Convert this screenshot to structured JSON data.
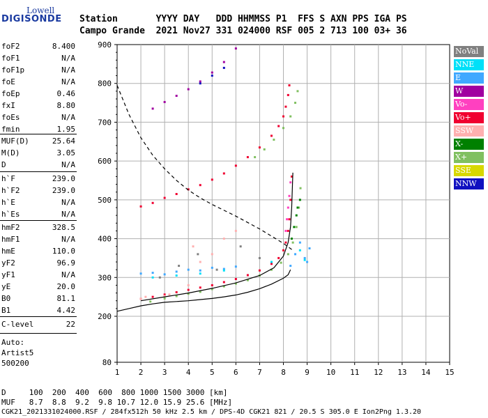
{
  "logo": {
    "line1": "Lowell",
    "line2": "DIGISONDE"
  },
  "header": {
    "line1": "Station       YYYY DAY   DDD HHMMSS P1  FFS S AXN PPS IGA PS",
    "line2": "Campo Grande  2021 Nov27 331 024000 RSF 005 2 713 100 03+ 36"
  },
  "params_group1": [
    {
      "label": "foF2",
      "value": "8.400"
    },
    {
      "label": "foF1",
      "value": "N/A"
    },
    {
      "label": "foF1p",
      "value": "N/A"
    },
    {
      "label": "foE",
      "value": "N/A"
    },
    {
      "label": "foEp",
      "value": "0.46"
    },
    {
      "label": "fxI",
      "value": "8.80"
    },
    {
      "label": "foEs",
      "value": "N/A"
    },
    {
      "label": "fmin",
      "value": "1.95"
    }
  ],
  "params_group2": [
    {
      "label": "MUF(D)",
      "value": "25.64"
    },
    {
      "label": "M(D)",
      "value": "3.05"
    },
    {
      "label": "D",
      "value": "N/A"
    }
  ],
  "params_group3": [
    {
      "label": "h`F",
      "value": "239.0"
    },
    {
      "label": "h`F2",
      "value": "239.0"
    },
    {
      "label": "h`E",
      "value": "N/A"
    },
    {
      "label": "h`Es",
      "value": "N/A"
    }
  ],
  "params_group4": [
    {
      "label": "hmF2",
      "value": "328.5"
    },
    {
      "label": "hmF1",
      "value": "N/A"
    },
    {
      "label": "hmE",
      "value": "110.0"
    },
    {
      "label": "yF2",
      "value": "96.9"
    },
    {
      "label": "yF1",
      "value": "N/A"
    },
    {
      "label": "yE",
      "value": "20.0"
    },
    {
      "label": "B0",
      "value": "81.1"
    },
    {
      "label": "B1",
      "value": "4.42"
    }
  ],
  "clevel": {
    "label": "C-level",
    "value": "22"
  },
  "auto": {
    "line1": "Auto:",
    "line2": "Artist5",
    "line3": "500200"
  },
  "legend": [
    {
      "label": "NoVal",
      "color": "#808080"
    },
    {
      "label": "NNE",
      "color": "#00e0f8"
    },
    {
      "label": "E",
      "color": "#40a8ff"
    },
    {
      "label": "W",
      "color": "#a000a0"
    },
    {
      "label": "Vo-",
      "color": "#ff40c0"
    },
    {
      "label": "Vo+",
      "color": "#f00030"
    },
    {
      "label": "SSW",
      "color": "#ffb0b0"
    },
    {
      "label": "X-",
      "color": "#008000"
    },
    {
      "label": "X+",
      "color": "#80c060"
    },
    {
      "label": "SSE",
      "color": "#d8d800"
    },
    {
      "label": "NNW",
      "color": "#1010c0"
    }
  ],
  "bottom": {
    "line1": "D     100  200  400  600  800 1000 1500 3000 [km]",
    "line2": "MUF   8.7  8.8  9.2  9.8 10.7 12.0 15.9 25.6 [MHz]",
    "line3": "CGK21_2021331024000.RSF / 284fx512h 50 kHz 2.5 km / DPS-4D CGK21 821 / 20.5 S 305.0 E Ion2Png 1.3.20"
  },
  "chart_data": {
    "type": "scatter",
    "xlabel": "",
    "ylabel": "",
    "xlim": [
      1,
      15
    ],
    "ylim": [
      80,
      900
    ],
    "x_ticks": [
      1,
      2,
      3,
      4,
      5,
      6,
      7,
      8,
      9,
      10,
      11,
      12,
      13,
      14,
      15
    ],
    "y_ticks": [
      80,
      200,
      300,
      400,
      500,
      600,
      700,
      800,
      900
    ],
    "grid": true,
    "legend_position": "right",
    "series": [
      {
        "legend": "Vo+",
        "color": "#f00030",
        "x": [
          2.0,
          2.5,
          3.0,
          3.5,
          4.0,
          4.5,
          5.0,
          5.5,
          6.0,
          6.5,
          7.0,
          7.5,
          7.8,
          8.0,
          8.1,
          8.2,
          8.25,
          8.3,
          8.35
        ],
        "y": [
          245,
          250,
          256,
          262,
          268,
          274,
          280,
          288,
          296,
          306,
          318,
          335,
          350,
          370,
          390,
          420,
          450,
          500,
          560
        ]
      },
      {
        "legend": "Vo+",
        "color": "#f00030",
        "x": [
          2.0,
          2.5,
          3.0,
          3.5,
          4.0,
          4.5,
          5.0,
          5.5,
          6.0,
          6.5,
          7.0,
          7.5,
          7.8,
          8.0,
          8.1,
          8.2,
          8.25
        ],
        "y": [
          483,
          492,
          505,
          515,
          527,
          538,
          552,
          568,
          588,
          610,
          635,
          665,
          690,
          715,
          740,
          770,
          795
        ]
      },
      {
        "legend": "X+",
        "color": "#80c060",
        "x": [
          2.4,
          3.0,
          3.5,
          4.0,
          4.5,
          5.0,
          5.5,
          6.0,
          6.5,
          7.0,
          7.5,
          7.9,
          8.2,
          8.4,
          8.55,
          8.65,
          8.72
        ],
        "y": [
          238,
          246,
          252,
          258,
          263,
          270,
          277,
          284,
          293,
          305,
          320,
          338,
          360,
          390,
          430,
          480,
          530
        ]
      },
      {
        "legend": "X+",
        "color": "#80c060",
        "x": [
          6.8,
          7.2,
          7.6,
          8.0,
          8.3,
          8.5,
          8.6
        ],
        "y": [
          610,
          630,
          655,
          685,
          715,
          750,
          780
        ]
      },
      {
        "legend": "W",
        "color": "#a000a0",
        "x": [
          2.5,
          3.0,
          3.5,
          4.0,
          4.5,
          5.0,
          5.5,
          6.0
        ],
        "y": [
          735,
          752,
          768,
          785,
          805,
          828,
          855,
          890
        ]
      },
      {
        "legend": "E",
        "color": "#40a8ff",
        "x": [
          2.0,
          2.5,
          3.0,
          3.5,
          4.0,
          4.5,
          5.0,
          5.5,
          6.0,
          8.3,
          8.5,
          8.7,
          8.9,
          9.0,
          9.1
        ],
        "y": [
          310,
          312,
          308,
          315,
          320,
          318,
          325,
          322,
          328,
          330,
          360,
          390,
          350,
          340,
          375
        ]
      },
      {
        "legend": "SSW",
        "color": "#ffb0b0",
        "x": [
          2.0,
          3.0,
          4.0,
          4.5,
          5.0,
          5.5,
          6.0,
          2.2,
          3.2,
          4.2
        ],
        "y": [
          245,
          252,
          280,
          340,
          360,
          400,
          420,
          250,
          256,
          380
        ]
      },
      {
        "legend": "NNE",
        "color": "#00e0f8",
        "x": [
          2.5,
          3.5,
          4.5,
          5.5,
          7.5,
          8.7,
          8.9
        ],
        "y": [
          300,
          305,
          310,
          318,
          340,
          370,
          345
        ]
      },
      {
        "legend": "Vo-",
        "color": "#ff40c0",
        "x": [
          8.1,
          8.15,
          8.2,
          8.25,
          8.3
        ],
        "y": [
          420,
          450,
          480,
          510,
          545
        ]
      },
      {
        "legend": "X-",
        "color": "#008000",
        "x": [
          8.35,
          8.45,
          8.55,
          8.6,
          8.7
        ],
        "y": [
          400,
          430,
          460,
          480,
          500
        ]
      },
      {
        "legend": "NNW",
        "color": "#1010c0",
        "x": [
          4.5,
          5.0,
          5.5
        ],
        "y": [
          800,
          820,
          840
        ]
      },
      {
        "legend": "NoVal",
        "color": "#808080",
        "x": [
          2.8,
          3.6,
          4.4,
          5.2,
          6.2,
          7.0
        ],
        "y": [
          300,
          330,
          360,
          320,
          380,
          350
        ]
      }
    ],
    "lines": [
      {
        "style": "solid",
        "color": "#000000",
        "x": [
          1.0,
          1.5,
          2.0,
          2.5,
          3.0,
          3.5,
          4.0,
          4.5,
          5.0,
          5.5,
          6.0,
          6.5,
          7.0,
          7.5,
          8.0,
          8.2,
          8.3
        ],
        "y": [
          213,
          220,
          227,
          232,
          236,
          238,
          240,
          243,
          246,
          250,
          255,
          262,
          271,
          283,
          298,
          307,
          320
        ]
      },
      {
        "style": "solid",
        "color": "#000000",
        "x": [
          2.0,
          3.0,
          4.0,
          5.0,
          6.0,
          7.0,
          7.6,
          8.0,
          8.2,
          8.3,
          8.35,
          8.4
        ],
        "y": [
          240,
          250,
          260,
          272,
          286,
          305,
          325,
          355,
          390,
          430,
          480,
          570
        ]
      },
      {
        "style": "dashed",
        "color": "#000000",
        "x": [
          1.0,
          1.5,
          2.0,
          2.5,
          3.0,
          3.5,
          4.0,
          4.5,
          5.0,
          6.0,
          7.0,
          8.0,
          8.4
        ],
        "y": [
          795,
          720,
          660,
          615,
          580,
          550,
          525,
          505,
          488,
          458,
          425,
          388,
          370
        ]
      }
    ]
  }
}
